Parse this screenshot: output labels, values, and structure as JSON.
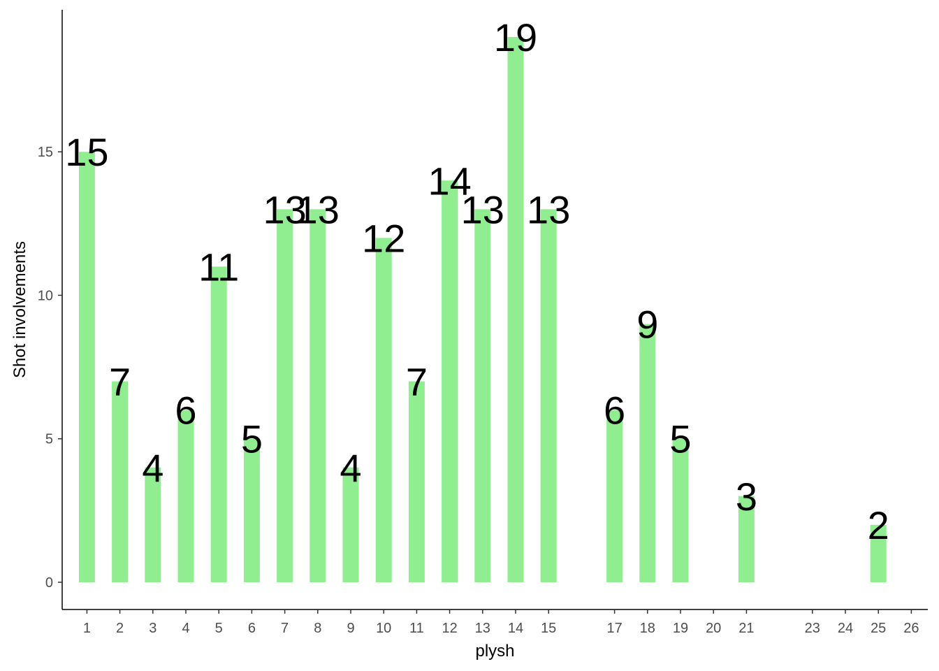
{
  "chart_data": {
    "type": "bar",
    "xlabel": "plysh",
    "ylabel": "Shot involvements",
    "x_ticks": [
      1,
      2,
      3,
      4,
      5,
      6,
      7,
      8,
      9,
      10,
      11,
      12,
      13,
      14,
      15,
      17,
      18,
      19,
      20,
      21,
      23,
      24,
      25,
      26
    ],
    "y_ticks": [
      0,
      5,
      10,
      15
    ],
    "xlim": [
      0.25,
      26.5
    ],
    "ylim": [
      -0.95,
      19.95
    ],
    "bar_color": "#90EE90",
    "bars": [
      {
        "x": 1,
        "value": 15
      },
      {
        "x": 2,
        "value": 7
      },
      {
        "x": 3,
        "value": 4
      },
      {
        "x": 4,
        "value": 6
      },
      {
        "x": 5,
        "value": 11
      },
      {
        "x": 6,
        "value": 5
      },
      {
        "x": 7,
        "value": 13
      },
      {
        "x": 8,
        "value": 13
      },
      {
        "x": 9,
        "value": 4
      },
      {
        "x": 10,
        "value": 12
      },
      {
        "x": 11,
        "value": 7
      },
      {
        "x": 12,
        "value": 14
      },
      {
        "x": 13,
        "value": 13
      },
      {
        "x": 14,
        "value": 19
      },
      {
        "x": 15,
        "value": 13
      },
      {
        "x": 17,
        "value": 6
      },
      {
        "x": 18,
        "value": 9
      },
      {
        "x": 19,
        "value": 5
      },
      {
        "x": 21,
        "value": 3
      },
      {
        "x": 25,
        "value": 2
      }
    ],
    "grid": false,
    "legend": "none"
  }
}
